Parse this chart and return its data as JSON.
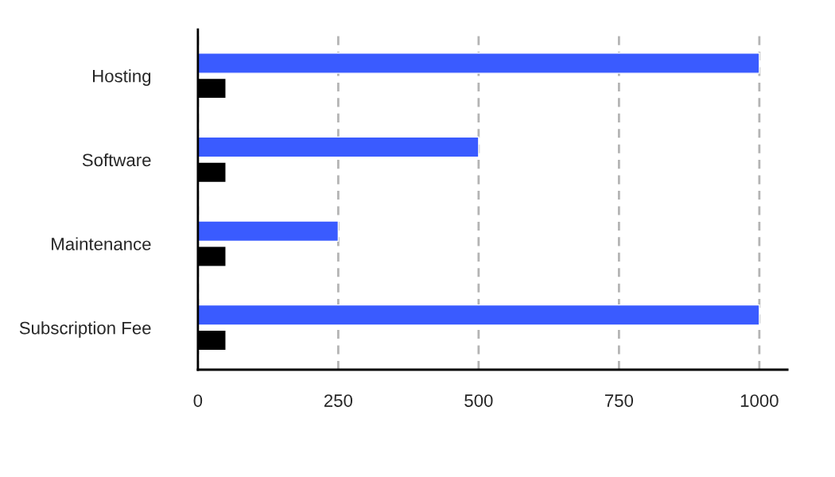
{
  "chart_data": {
    "type": "bar",
    "orientation": "horizontal",
    "categories": [
      "Hosting",
      "Software",
      "Maintenance",
      "Subscription Fee"
    ],
    "series": [
      {
        "color": "#3a5bff",
        "values": [
          1000,
          500,
          250,
          1000
        ]
      },
      {
        "color": "#000000",
        "values": [
          50,
          50,
          50,
          50
        ]
      }
    ],
    "xlim": [
      0,
      1050
    ],
    "xticks": [
      0,
      250,
      500,
      750,
      1000
    ],
    "grid": "x"
  }
}
